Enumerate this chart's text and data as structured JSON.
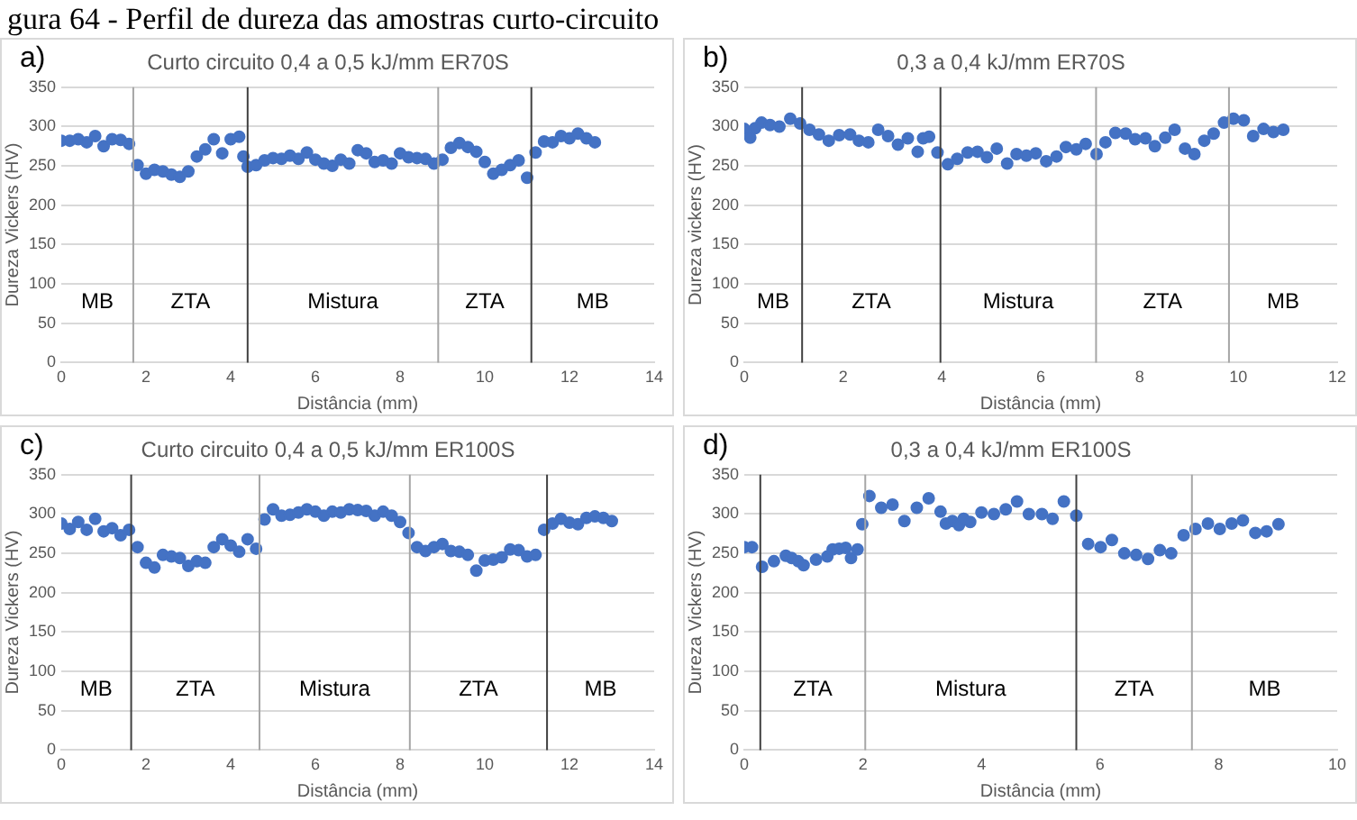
{
  "chart_data": [
    {
      "type": "other",
      "annotations": [
        "gura 64 - Perfil de dureza das amostras curto-circuito"
      ]
    },
    {
      "type": "scatter",
      "title": "Curto circuito 0,4 a 0,5 kJ/mm ER70S",
      "xlabel": "Distância (mm)",
      "ylabel": "Dureza Vickers (HV)",
      "marker": "circle",
      "grid": "y",
      "color": "#4472c4",
      "x": [
        0,
        0.2,
        0.4,
        0.6,
        0.8,
        1.0,
        1.2,
        1.4,
        1.6,
        1.8,
        2.0,
        2.2,
        2.4,
        2.6,
        2.8,
        3.0,
        3.2,
        3.4,
        3.6,
        3.8,
        4.0,
        4.2,
        4.3,
        4.4,
        4.6,
        4.8,
        5.0,
        5.2,
        5.4,
        5.6,
        5.8,
        6.0,
        6.2,
        6.4,
        6.6,
        6.8,
        7.0,
        7.2,
        7.4,
        7.6,
        7.8,
        8.0,
        8.2,
        8.4,
        8.6,
        8.8,
        9.0,
        9.2,
        9.4,
        9.6,
        9.8,
        10.0,
        10.2,
        10.4,
        10.6,
        10.8,
        11.0,
        11.2,
        11.4,
        11.6,
        11.8,
        12.0,
        12.2,
        12.4,
        12.6
      ],
      "values": [
        282,
        282,
        284,
        280,
        288,
        275,
        284,
        283,
        278,
        251,
        240,
        245,
        243,
        239,
        236,
        243,
        262,
        271,
        284,
        266,
        284,
        287,
        262,
        249,
        251,
        257,
        260,
        259,
        263,
        259,
        267,
        258,
        253,
        250,
        258,
        253,
        270,
        266,
        255,
        257,
        253,
        266,
        261,
        260,
        259,
        253,
        258,
        273,
        279,
        274,
        268,
        255,
        240,
        245,
        251,
        257,
        235,
        267,
        281,
        280,
        288,
        285,
        291,
        285,
        280
      ],
      "xlim": [
        0,
        14
      ],
      "xticks": [
        0,
        2,
        4,
        6,
        8,
        10,
        12,
        14
      ],
      "ylim": [
        0,
        350
      ],
      "yticks": [
        0,
        50,
        100,
        150,
        200,
        250,
        300,
        350
      ],
      "ref_lines": [
        {
          "axis": "x",
          "value": 1.7,
          "color": "#a6a6a6"
        },
        {
          "axis": "x",
          "value": 4.4,
          "color": "#404040"
        },
        {
          "axis": "x",
          "value": 8.9,
          "color": "#a6a6a6"
        },
        {
          "axis": "x",
          "value": 11.1,
          "color": "#404040"
        }
      ],
      "annotations": [
        "a)",
        "MB",
        "ZTA",
        "Mistura",
        "ZTA",
        "MB"
      ]
    },
    {
      "type": "scatter",
      "title": "0,3 a 0,4 kJ/mm ER70S",
      "xlabel": "Distância (mm)",
      "ylabel": "Dureza vickers (HV)",
      "marker": "circle",
      "grid": "y",
      "color": "#4472c4",
      "x": [
        0,
        0.12,
        0.22,
        0.35,
        0.52,
        0.71,
        0.93,
        1.13,
        1.32,
        1.51,
        1.71,
        1.92,
        2.14,
        2.32,
        2.51,
        2.71,
        2.91,
        3.11,
        3.31,
        3.51,
        3.62,
        3.74,
        3.91,
        4.12,
        4.31,
        4.52,
        4.72,
        4.91,
        5.11,
        5.32,
        5.51,
        5.71,
        5.9,
        6.11,
        6.32,
        6.51,
        6.72,
        6.91,
        7.13,
        7.31,
        7.51,
        7.72,
        7.91,
        8.12,
        8.31,
        8.52,
        8.71,
        8.92,
        9.11,
        9.31,
        9.5,
        9.71,
        9.9,
        10.11,
        10.3,
        10.51,
        10.71,
        10.91
      ],
      "values": [
        297,
        286,
        298,
        305,
        302,
        300,
        310,
        304,
        296,
        290,
        282,
        289,
        290,
        282,
        280,
        296,
        288,
        277,
        285,
        268,
        285,
        287,
        267,
        252,
        259,
        267,
        268,
        261,
        272,
        253,
        265,
        263,
        266,
        256,
        262,
        274,
        271,
        278,
        265,
        280,
        292,
        291,
        284,
        285,
        275,
        286,
        296,
        272,
        265,
        282,
        291,
        305,
        310,
        308,
        288,
        297,
        293,
        296
      ],
      "xlim": [
        0,
        12
      ],
      "xticks": [
        0,
        2,
        4,
        6,
        8,
        10,
        12
      ],
      "ylim": [
        0,
        350
      ],
      "yticks": [
        0,
        50,
        100,
        150,
        200,
        250,
        300,
        350
      ],
      "ref_lines": [
        {
          "axis": "x",
          "value": 1.17,
          "color": "#404040"
        },
        {
          "axis": "x",
          "value": 3.97,
          "color": "#404040"
        },
        {
          "axis": "x",
          "value": 7.12,
          "color": "#a6a6a6"
        },
        {
          "axis": "x",
          "value": 9.81,
          "color": "#a6a6a6"
        }
      ],
      "annotations": [
        "b)",
        "MB",
        "ZTA",
        "Mistura",
        "ZTA",
        "MB"
      ]
    },
    {
      "type": "scatter",
      "title": "Curto circuito 0,4 a 0,5 kJ/mm ER100S",
      "xlabel": "Distância (mm)",
      "ylabel": "Dureza Vickers (HV)",
      "marker": "circle",
      "grid": "y",
      "color": "#4472c4",
      "x": [
        0,
        0.2,
        0.4,
        0.6,
        0.8,
        1.0,
        1.2,
        1.4,
        1.6,
        1.8,
        2.0,
        2.2,
        2.4,
        2.6,
        2.8,
        3.0,
        3.2,
        3.4,
        3.6,
        3.8,
        4.0,
        4.2,
        4.4,
        4.6,
        4.8,
        5.0,
        5.2,
        5.4,
        5.6,
        5.8,
        6.0,
        6.2,
        6.4,
        6.6,
        6.8,
        7.0,
        7.2,
        7.4,
        7.6,
        7.8,
        8.0,
        8.2,
        8.4,
        8.6,
        8.8,
        9.0,
        9.2,
        9.4,
        9.6,
        9.8,
        10.0,
        10.2,
        10.4,
        10.6,
        10.8,
        11.0,
        11.2,
        11.4,
        11.6,
        11.8,
        12.0,
        12.2,
        12.4,
        12.6,
        12.8,
        13.0
      ],
      "values": [
        288,
        281,
        290,
        280,
        294,
        278,
        282,
        273,
        280,
        258,
        238,
        232,
        248,
        246,
        244,
        234,
        240,
        238,
        258,
        268,
        260,
        252,
        268,
        256,
        293,
        306,
        298,
        299,
        302,
        306,
        303,
        298,
        303,
        302,
        306,
        305,
        304,
        298,
        303,
        298,
        290,
        276,
        258,
        253,
        258,
        262,
        253,
        252,
        248,
        228,
        241,
        242,
        245,
        255,
        254,
        246,
        248,
        280,
        288,
        294,
        289,
        287,
        295,
        297,
        295,
        291
      ],
      "xlim": [
        0,
        14
      ],
      "xticks": [
        0,
        2,
        4,
        6,
        8,
        10,
        12,
        14
      ],
      "ylim": [
        0,
        350
      ],
      "yticks": [
        0,
        50,
        100,
        150,
        200,
        250,
        300,
        350
      ],
      "ref_lines": [
        {
          "axis": "x",
          "value": 1.65,
          "color": "#404040"
        },
        {
          "axis": "x",
          "value": 4.68,
          "color": "#a6a6a6"
        },
        {
          "axis": "x",
          "value": 8.23,
          "color": "#a6a6a6"
        },
        {
          "axis": "x",
          "value": 11.47,
          "color": "#404040"
        }
      ],
      "annotations": [
        "c)",
        "MB",
        "ZTA",
        "Mistura",
        "ZTA",
        "MB"
      ]
    },
    {
      "type": "scatter",
      "title": "0,3 a 0,4 kJ/mm ER100S",
      "xlabel": "Distância (mm)",
      "ylabel": "Dureza Vickers (HV)",
      "marker": "circle",
      "grid": "y",
      "color": "#4472c4",
      "x": [
        0,
        0.13,
        0.3,
        0.5,
        0.7,
        0.8,
        0.91,
        1.0,
        1.21,
        1.4,
        1.49,
        1.6,
        1.71,
        1.8,
        1.91,
        1.99,
        2.11,
        2.31,
        2.5,
        2.7,
        2.91,
        3.11,
        3.31,
        3.4,
        3.51,
        3.62,
        3.7,
        3.81,
        4.0,
        4.21,
        4.41,
        4.6,
        4.8,
        5.02,
        5.2,
        5.39,
        5.6,
        5.8,
        6.01,
        6.2,
        6.41,
        6.61,
        6.81,
        7.01,
        7.2,
        7.41,
        7.61,
        7.82,
        8.02,
        8.22,
        8.41,
        8.62,
        8.81,
        9.01
      ],
      "values": [
        258,
        258,
        233,
        240,
        247,
        244,
        240,
        235,
        242,
        246,
        255,
        256,
        257,
        244,
        255,
        287,
        323,
        308,
        312,
        291,
        308,
        320,
        303,
        288,
        291,
        286,
        294,
        290,
        302,
        300,
        306,
        316,
        300,
        300,
        294,
        316,
        298,
        262,
        258,
        267,
        250,
        248,
        243,
        254,
        250,
        273,
        281,
        288,
        281,
        288,
        292,
        276,
        278,
        287
      ],
      "xlim": [
        0,
        10
      ],
      "xticks": [
        0,
        2,
        4,
        6,
        8,
        10
      ],
      "ylim": [
        0,
        350
      ],
      "yticks": [
        0,
        50,
        100,
        150,
        200,
        250,
        300,
        350
      ],
      "ref_lines": [
        {
          "axis": "x",
          "value": 0.27,
          "color": "#404040"
        },
        {
          "axis": "x",
          "value": 2.04,
          "color": "#a6a6a6"
        },
        {
          "axis": "x",
          "value": 5.6,
          "color": "#404040"
        },
        {
          "axis": "x",
          "value": 7.55,
          "color": "#a6a6a6"
        }
      ],
      "annotations": [
        "d)",
        "ZTA",
        "Mistura",
        "ZTA",
        "MB"
      ]
    }
  ]
}
